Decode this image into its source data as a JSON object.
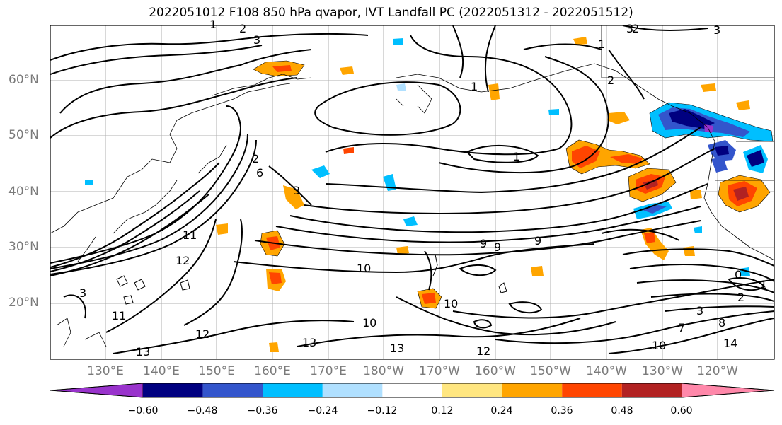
{
  "title": "2022051012 F108 850 hPa qvapor, IVT Landfall PC (2022051312 - 2022051512)",
  "latitude_labels": [
    "60°N",
    "50°N",
    "40°N",
    "30°N",
    "20°N"
  ],
  "longitude_labels": [
    "130°E",
    "140°E",
    "150°E",
    "160°E",
    "170°E",
    "180°W",
    "170°W",
    "160°W",
    "150°W",
    "140°W",
    "130°W",
    "120°W"
  ],
  "colorbar": {
    "ticks": [
      "−0.60",
      "−0.48",
      "−0.36",
      "−0.24",
      "−0.12",
      "0.12",
      "0.24",
      "0.36",
      "0.48",
      "0.60"
    ],
    "colors": [
      "#9933cc",
      "#000080",
      "#3355cc",
      "#00bfff",
      "#b0e0ff",
      "#ffffff",
      "#ffe680",
      "#ffa500",
      "#ff4500",
      "#b22222",
      "#ff88aa"
    ]
  },
  "contour_labels": [
    "1",
    "2",
    "3",
    "1",
    "1",
    "2",
    "3",
    "2",
    "3",
    "1",
    "9",
    "9",
    "9",
    "10",
    "10",
    "10",
    "11",
    "11",
    "12",
    "12",
    "13",
    "13",
    "13",
    "12",
    "14",
    "3",
    "0",
    "1",
    "2",
    "10",
    "3",
    "3",
    "2",
    "6",
    "8",
    "7"
  ]
}
